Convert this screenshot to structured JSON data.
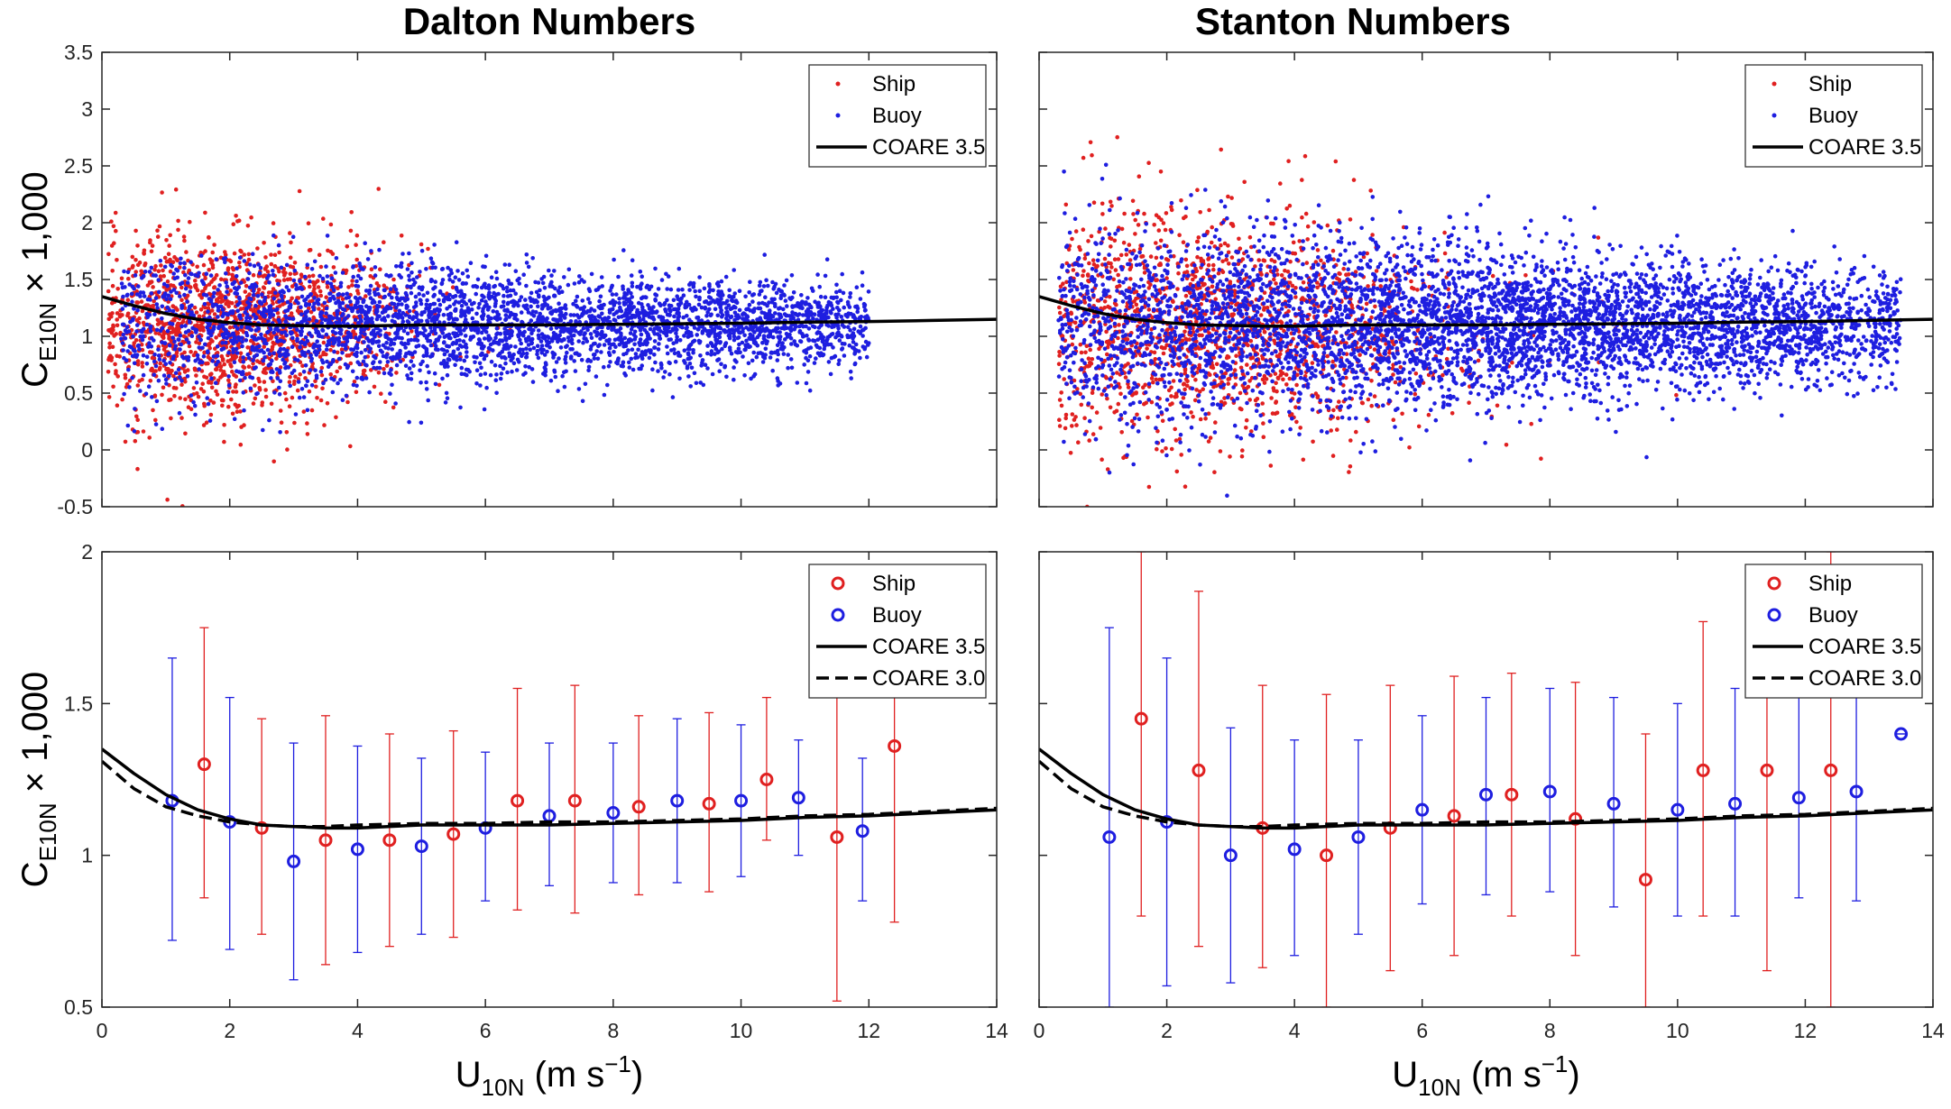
{
  "chart_data": [
    {
      "id": "dalton-scatter",
      "type": "scatter",
      "title": "Dalton Numbers",
      "ylabel": {
        "main": "C",
        "sub": "E10N",
        "rest": " × 1,000"
      },
      "xlim": [
        0,
        14
      ],
      "ylim": [
        -0.5,
        3.5
      ],
      "xticks": [
        "0",
        "2",
        "4",
        "6",
        "8",
        "10",
        "12",
        "14"
      ],
      "yticks": [
        "-0.5",
        "0",
        "0.5",
        "1",
        "1.5",
        "2",
        "2.5",
        "3",
        "3.5"
      ],
      "legend": {
        "placement": "top-right",
        "entries": [
          {
            "label": "Ship",
            "marker": "dot",
            "color": "#e02020"
          },
          {
            "label": "Buoy",
            "marker": "dot",
            "color": "#1e1ee0"
          },
          {
            "label": "COARE 3.5",
            "marker": "line",
            "color": "#000000"
          }
        ]
      },
      "series": [
        {
          "name": "Ship",
          "color": "#e02020",
          "approx_count": 1500,
          "distribution": {
            "x_range": [
              0.1,
              12.6
            ],
            "x_mode": 1.8,
            "center": 1.1,
            "spread_low_wind": 0.55,
            "spread_high_wind": 0.3
          }
        },
        {
          "name": "Buoy",
          "color": "#1e1ee0",
          "approx_count": 3500,
          "distribution": {
            "x_range": [
              0.3,
              12.0
            ],
            "x_mode": 7.0,
            "center": 1.1,
            "spread_low_wind": 0.45,
            "spread_high_wind": 0.22
          }
        },
        {
          "name": "COARE 3.5",
          "style": "solid",
          "color": "#000000",
          "x": [
            0,
            0.5,
            1,
            1.5,
            2,
            2.5,
            3,
            3.5,
            4,
            5,
            6,
            7,
            8,
            9,
            10,
            11,
            12,
            13,
            14
          ],
          "y": [
            1.35,
            1.27,
            1.2,
            1.15,
            1.12,
            1.1,
            1.095,
            1.09,
            1.09,
            1.1,
            1.1,
            1.1,
            1.105,
            1.11,
            1.115,
            1.125,
            1.13,
            1.14,
            1.15
          ]
        }
      ]
    },
    {
      "id": "stanton-scatter",
      "type": "scatter",
      "title": "Stanton Numbers",
      "xlim": [
        0,
        14
      ],
      "ylim": [
        -0.5,
        3.5
      ],
      "xticks": [
        "0",
        "2",
        "4",
        "6",
        "8",
        "10",
        "12",
        "14"
      ],
      "legend": {
        "placement": "top-right",
        "entries": [
          {
            "label": "Ship",
            "marker": "dot",
            "color": "#e02020"
          },
          {
            "label": "Buoy",
            "marker": "dot",
            "color": "#1e1ee0"
          },
          {
            "label": "COARE 3.5",
            "marker": "line",
            "color": "#000000"
          }
        ]
      },
      "series": [
        {
          "name": "Ship",
          "color": "#e02020",
          "approx_count": 1500,
          "distribution": {
            "x_range": [
              0.3,
              12.8
            ],
            "x_mode": 2.5,
            "center": 1.1,
            "spread_low_wind": 0.7,
            "spread_high_wind": 0.45
          }
        },
        {
          "name": "Buoy",
          "color": "#1e1ee0",
          "approx_count": 5000,
          "distribution": {
            "x_range": [
              0.3,
              13.5
            ],
            "x_mode": 7.0,
            "center": 1.1,
            "spread_low_wind": 0.6,
            "spread_high_wind": 0.3
          }
        },
        {
          "name": "COARE 3.5",
          "style": "solid",
          "color": "#000000",
          "x": [
            0,
            0.5,
            1,
            1.5,
            2,
            2.5,
            3,
            3.5,
            4,
            5,
            6,
            7,
            8,
            9,
            10,
            11,
            12,
            13,
            14
          ],
          "y": [
            1.35,
            1.27,
            1.2,
            1.15,
            1.12,
            1.1,
            1.095,
            1.09,
            1.09,
            1.1,
            1.1,
            1.1,
            1.105,
            1.11,
            1.115,
            1.125,
            1.13,
            1.14,
            1.15
          ]
        }
      ]
    },
    {
      "id": "dalton-binned",
      "type": "scatter",
      "xlabel": {
        "main": "U",
        "sub": "10N",
        "rest": " (m s",
        "sup": "−1",
        "end": ")"
      },
      "ylabel": {
        "main": "C",
        "sub": "E10N",
        "rest": " × 1,000"
      },
      "xlim": [
        0,
        14
      ],
      "ylim": [
        0.5,
        2
      ],
      "xticks": [
        "0",
        "2",
        "4",
        "6",
        "8",
        "10",
        "12",
        "14"
      ],
      "yticks": [
        "0.5",
        "1",
        "1.5",
        "2"
      ],
      "legend": {
        "placement": "top-right",
        "entries": [
          {
            "label": "Ship",
            "marker": "circle",
            "color": "#e02020"
          },
          {
            "label": "Buoy",
            "marker": "circle",
            "color": "#1e1ee0"
          },
          {
            "label": "COARE 3.5",
            "marker": "line",
            "color": "#000000"
          },
          {
            "label": "COARE 3.0",
            "marker": "dashed",
            "color": "#000000"
          }
        ]
      },
      "series": [
        {
          "name": "Ship",
          "color": "#e02020",
          "x": [
            1.6,
            2.5,
            3.5,
            4.5,
            5.5,
            6.5,
            7.4,
            8.4,
            9.5,
            10.4,
            11.5,
            12.4
          ],
          "y": [
            1.3,
            1.09,
            1.05,
            1.05,
            1.07,
            1.18,
            1.18,
            1.16,
            1.17,
            1.25,
            1.06,
            1.36
          ],
          "err_low": [
            0.86,
            0.74,
            0.64,
            0.7,
            0.73,
            0.82,
            0.81,
            0.87,
            0.88,
            1.05,
            0.52,
            0.78
          ],
          "err_high": [
            1.75,
            1.45,
            1.46,
            1.4,
            1.41,
            1.55,
            1.56,
            1.46,
            1.47,
            1.52,
            1.6,
            1.95
          ]
        },
        {
          "name": "Buoy",
          "color": "#1e1ee0",
          "x": [
            1.1,
            2.0,
            3.0,
            4.0,
            5.0,
            6.0,
            7.0,
            8.0,
            9.0,
            10.0,
            10.9,
            11.9
          ],
          "y": [
            1.18,
            1.11,
            0.98,
            1.02,
            1.03,
            1.09,
            1.13,
            1.14,
            1.18,
            1.18,
            1.19,
            1.08
          ],
          "err_low": [
            0.72,
            0.69,
            0.59,
            0.68,
            0.74,
            0.85,
            0.9,
            0.91,
            0.91,
            0.93,
            1.0,
            0.85
          ],
          "err_high": [
            1.65,
            1.52,
            1.37,
            1.36,
            1.32,
            1.34,
            1.37,
            1.37,
            1.45,
            1.43,
            1.38,
            1.32
          ]
        },
        {
          "name": "COARE 3.5",
          "style": "solid",
          "color": "#000000",
          "x": [
            0,
            0.5,
            1,
            1.5,
            2,
            2.5,
            3,
            3.5,
            4,
            5,
            6,
            7,
            8,
            9,
            10,
            11,
            12,
            13,
            14
          ],
          "y": [
            1.35,
            1.27,
            1.2,
            1.15,
            1.12,
            1.1,
            1.095,
            1.09,
            1.09,
            1.1,
            1.1,
            1.1,
            1.105,
            1.11,
            1.115,
            1.125,
            1.13,
            1.14,
            1.15
          ]
        },
        {
          "name": "COARE 3.0",
          "style": "dashed",
          "color": "#000000",
          "x": [
            0,
            0.5,
            1,
            1.5,
            2,
            2.5,
            3,
            3.5,
            4,
            5,
            6,
            7,
            8,
            9,
            10,
            11,
            12,
            13,
            14
          ],
          "y": [
            1.31,
            1.22,
            1.16,
            1.13,
            1.11,
            1.1,
            1.095,
            1.095,
            1.1,
            1.105,
            1.105,
            1.11,
            1.11,
            1.115,
            1.12,
            1.13,
            1.135,
            1.145,
            1.155
          ]
        }
      ]
    },
    {
      "id": "stanton-binned",
      "type": "scatter",
      "xlabel": {
        "main": "U",
        "sub": "10N",
        "rest": " (m s",
        "sup": "−1",
        "end": ")"
      },
      "xlim": [
        0,
        14
      ],
      "ylim": [
        0.5,
        2
      ],
      "xticks": [
        "0",
        "2",
        "4",
        "6",
        "8",
        "10",
        "12",
        "14"
      ],
      "legend": {
        "placement": "top-right",
        "entries": [
          {
            "label": "Ship",
            "marker": "circle",
            "color": "#e02020"
          },
          {
            "label": "Buoy",
            "marker": "circle",
            "color": "#1e1ee0"
          },
          {
            "label": "COARE 3.5",
            "marker": "line",
            "color": "#000000"
          },
          {
            "label": "COARE 3.0",
            "marker": "dashed",
            "color": "#000000"
          }
        ]
      },
      "series": [
        {
          "name": "Ship",
          "color": "#e02020",
          "x": [
            1.6,
            2.5,
            3.5,
            4.5,
            5.5,
            6.5,
            7.4,
            8.4,
            9.5,
            10.4,
            11.4,
            12.4
          ],
          "y": [
            1.45,
            1.28,
            1.09,
            1.0,
            1.09,
            1.13,
            1.2,
            1.12,
            0.92,
            1.28,
            1.28,
            1.28
          ],
          "err_low": [
            0.8,
            0.7,
            0.63,
            0.5,
            0.62,
            0.67,
            0.8,
            0.67,
            0.5,
            0.8,
            0.62,
            0.5
          ],
          "err_high": [
            2.0,
            1.87,
            1.56,
            1.53,
            1.56,
            1.59,
            1.6,
            1.57,
            1.4,
            1.77,
            1.9,
            2.0
          ]
        },
        {
          "name": "Buoy",
          "color": "#1e1ee0",
          "x": [
            1.1,
            2.0,
            3.0,
            4.0,
            5.0,
            6.0,
            7.0,
            8.0,
            9.0,
            10.0,
            10.9,
            11.9,
            12.8,
            13.5
          ],
          "y": [
            1.06,
            1.11,
            1.0,
            1.02,
            1.06,
            1.15,
            1.2,
            1.21,
            1.17,
            1.15,
            1.17,
            1.19,
            1.21,
            1.4
          ],
          "err_low": [
            0.5,
            0.57,
            0.58,
            0.67,
            0.74,
            0.84,
            0.87,
            0.88,
            0.83,
            0.8,
            0.8,
            0.86,
            0.85,
            1.4
          ],
          "err_high": [
            1.75,
            1.65,
            1.42,
            1.38,
            1.38,
            1.46,
            1.52,
            1.55,
            1.52,
            1.5,
            1.55,
            1.53,
            1.57,
            1.4
          ]
        },
        {
          "name": "COARE 3.5",
          "style": "solid",
          "color": "#000000",
          "x": [
            0,
            0.5,
            1,
            1.5,
            2,
            2.5,
            3,
            3.5,
            4,
            5,
            6,
            7,
            8,
            9,
            10,
            11,
            12,
            13,
            14
          ],
          "y": [
            1.35,
            1.27,
            1.2,
            1.15,
            1.12,
            1.1,
            1.095,
            1.09,
            1.09,
            1.1,
            1.1,
            1.1,
            1.105,
            1.11,
            1.115,
            1.125,
            1.13,
            1.14,
            1.15
          ]
        },
        {
          "name": "COARE 3.0",
          "style": "dashed",
          "color": "#000000",
          "x": [
            0,
            0.5,
            1,
            1.5,
            2,
            2.5,
            3,
            3.5,
            4,
            5,
            6,
            7,
            8,
            9,
            10,
            11,
            12,
            13,
            14
          ],
          "y": [
            1.31,
            1.22,
            1.16,
            1.13,
            1.11,
            1.1,
            1.095,
            1.095,
            1.1,
            1.105,
            1.105,
            1.11,
            1.11,
            1.115,
            1.12,
            1.13,
            1.135,
            1.145,
            1.155
          ]
        }
      ]
    }
  ]
}
